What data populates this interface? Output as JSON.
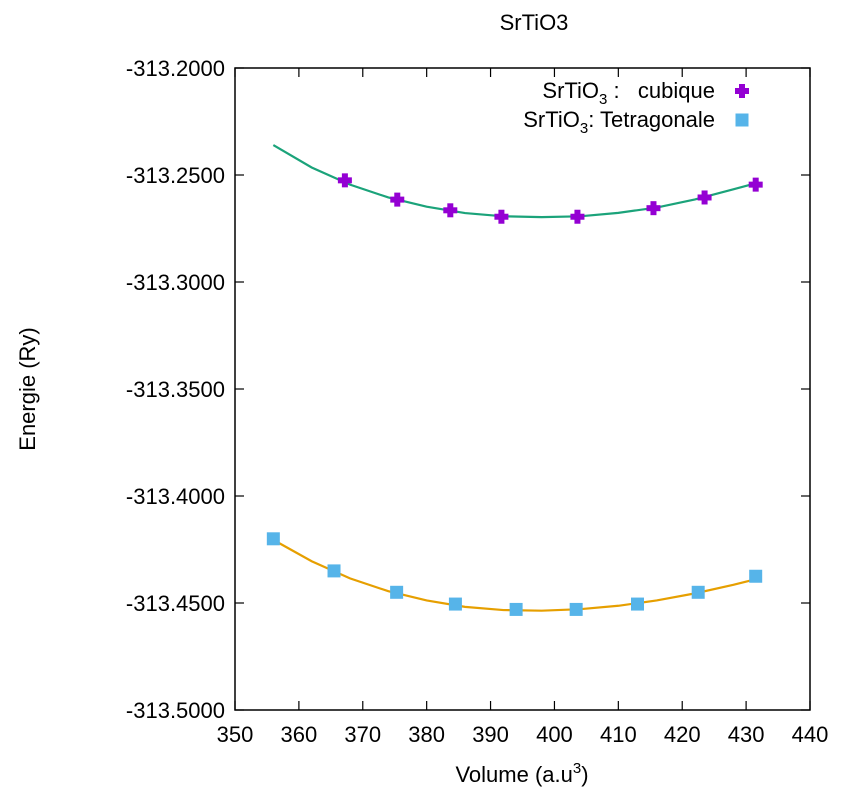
{
  "chart_data": {
    "type": "scatter",
    "title": "SrTiO3",
    "xlabel": "Volume (a.u",
    "xlabel_sup": "3",
    "xlabel_close": ")",
    "ylabel": "Energie (Ry)",
    "xlim": [
      350,
      440
    ],
    "ylim": [
      -313.5,
      -313.2
    ],
    "x_ticks": [
      350,
      360,
      370,
      380,
      390,
      400,
      410,
      420,
      430,
      440
    ],
    "y_ticks": [
      -313.2,
      -313.25,
      -313.3,
      -313.35,
      -313.4,
      -313.45,
      -313.5
    ],
    "y_tick_labels": [
      "-313.2000",
      "-313.2500",
      "-313.3000",
      "-313.3500",
      "-313.4000",
      "-313.4500",
      "-313.5000"
    ],
    "grid": false,
    "legend_position": "top-right",
    "series": [
      {
        "name": "SrTiO3 : cubique",
        "legend_main": "SrTiO",
        "legend_sub": "3",
        "legend_rest": " :   cubique",
        "marker": "plus",
        "color": "#9400D3",
        "fit_color": "#1BA37A",
        "x": [
          367.2,
          375.4,
          383.7,
          391.7,
          403.6,
          415.5,
          423.5,
          431.5
        ],
        "y": [
          -313.2525,
          -313.2615,
          -313.2665,
          -313.2695,
          -313.2695,
          -313.2655,
          -313.2605,
          -313.2545
        ],
        "fit_x": [
          356,
          362,
          368,
          374,
          380,
          386,
          392,
          398,
          404,
          410,
          416,
          422,
          428,
          432
        ],
        "fit_y": [
          -313.236,
          -313.2465,
          -313.2545,
          -313.2605,
          -313.2648,
          -313.2678,
          -313.2693,
          -313.2697,
          -313.2693,
          -313.2677,
          -313.2652,
          -313.2614,
          -313.2567,
          -313.2535
        ]
      },
      {
        "name": "SrTiO3: Tetragonale",
        "legend_main": "SrTiO",
        "legend_sub": "3",
        "legend_rest": ": Tetragonale",
        "marker": "square",
        "color": "#56B4E9",
        "fit_color": "#E69F00",
        "x": [
          356,
          365.5,
          375.3,
          384.5,
          394,
          403.4,
          413,
          422.5,
          431.5
        ],
        "y": [
          -313.42,
          -313.435,
          -313.445,
          -313.4505,
          -313.453,
          -313.453,
          -313.4505,
          -313.445,
          -313.4375
        ],
        "fit_x": [
          356,
          362,
          368,
          374,
          380,
          386,
          392,
          398,
          404,
          410,
          416,
          422,
          428,
          432
        ],
        "fit_y": [
          -313.4205,
          -313.4305,
          -313.4385,
          -313.4445,
          -313.4488,
          -313.4518,
          -313.4533,
          -313.4536,
          -313.4529,
          -313.4513,
          -313.4488,
          -313.4455,
          -313.4415,
          -313.4385
        ]
      }
    ]
  }
}
